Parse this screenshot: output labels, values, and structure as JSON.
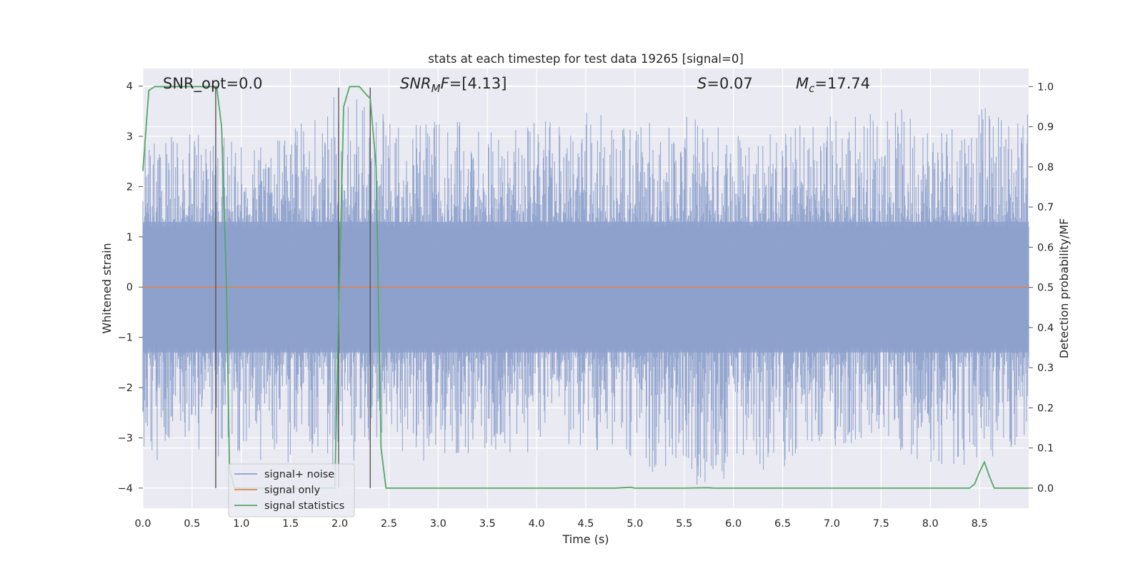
{
  "chart_data": {
    "type": "line",
    "title": "stats at each timestep for test data 19265 [signal=0]",
    "xlabel": "Time (s)",
    "ylabel": "Whitened strain",
    "y2label": "Detection probability/MF",
    "xlim": [
      0,
      9
    ],
    "ylim": [
      -4.4,
      4.35
    ],
    "y2lim": [
      -0.05,
      1.045
    ],
    "xticks": [
      "0.0",
      "0.5",
      "1.0",
      "1.5",
      "2.0",
      "2.5",
      "3.0",
      "3.5",
      "4.0",
      "4.5",
      "5.0",
      "5.5",
      "6.0",
      "6.5",
      "7.0",
      "7.5",
      "8.0",
      "8.5"
    ],
    "yticks": [
      "4",
      "3",
      "2",
      "1",
      "0",
      "−1",
      "−2",
      "−3",
      "−4"
    ],
    "y2ticks": [
      "1.0",
      "0.9",
      "0.8",
      "0.7",
      "0.6",
      "0.5",
      "0.4",
      "0.3",
      "0.2",
      "0.1",
      "0.0"
    ],
    "grid": true,
    "legend_position": "lower-left",
    "annotations": {
      "snr_opt": "SNR_opt=0.0",
      "snr_mf_var": "SNR",
      "snr_mf_sub": "M",
      "snr_mf_rest": "F=[4.13]",
      "s_var": "S",
      "s_rest": "=0.07",
      "mc_var": "M",
      "mc_sub": "c",
      "mc_rest": "=17.74"
    },
    "vertical_markers": [
      0.74,
      1.99,
      2.31
    ],
    "series": [
      {
        "name": "signal+ noise",
        "color": "#8da0cb",
        "description_value_range": [
          -4.0,
          4.0
        ],
        "envelope": {
          "x": [
            0.0,
            0.5,
            1.0,
            1.5,
            2.0,
            2.5,
            3.0,
            3.5,
            4.0,
            4.5,
            5.0,
            5.5,
            6.0,
            6.5,
            7.0,
            7.5,
            8.0,
            8.5,
            9.0
          ],
          "upper": [
            2.8,
            3.2,
            2.9,
            3.1,
            4.0,
            3.4,
            3.5,
            3.3,
            3.3,
            3.5,
            3.4,
            3.4,
            3.3,
            3.2,
            3.6,
            3.6,
            3.5,
            3.6,
            3.5
          ],
          "lower": [
            -3.5,
            -3.3,
            -3.5,
            -3.6,
            -3.6,
            -3.2,
            -3.6,
            -3.3,
            -3.3,
            -3.2,
            -3.5,
            -4.0,
            -4.0,
            -3.6,
            -3.3,
            -3.2,
            -3.5,
            -3.7,
            -3.1
          ]
        }
      },
      {
        "name": "signal only",
        "color": "#dd8452",
        "x": [
          0,
          9
        ],
        "y": [
          0,
          0
        ]
      },
      {
        "name": "signal statistics",
        "color": "#55a868",
        "axis": "right",
        "x": [
          0.0,
          0.06,
          0.12,
          0.2,
          0.3,
          0.4,
          0.5,
          0.6,
          0.7,
          0.75,
          0.8,
          0.85,
          0.88,
          0.93,
          1.0,
          1.5,
          1.95,
          1.99,
          2.04,
          2.1,
          2.2,
          2.27,
          2.31,
          2.37,
          2.42,
          2.47,
          2.5,
          3.0,
          3.5,
          4.0,
          4.5,
          4.8,
          4.95,
          5.0,
          5.5,
          5.75,
          5.8,
          6.5,
          7.0,
          7.5,
          8.0,
          8.4,
          8.45,
          8.5,
          8.55,
          8.6,
          8.65,
          8.7,
          9.0
        ],
        "y": [
          0.79,
          0.99,
          1.0,
          1.0,
          1.0,
          1.0,
          1.0,
          1.0,
          1.0,
          1.0,
          0.9,
          0.5,
          0.05,
          0.0,
          0.0,
          0.0,
          0.0,
          0.45,
          0.95,
          1.0,
          1.0,
          0.98,
          0.97,
          0.8,
          0.1,
          0.0,
          0.0,
          0.0,
          0.0,
          0.0,
          0.0,
          0.0,
          0.002,
          0.0,
          0.0,
          0.001,
          0.0,
          0.0,
          0.0,
          0.0,
          0.0,
          0.0,
          0.01,
          0.04,
          0.065,
          0.03,
          0.0,
          0.0,
          0.0
        ]
      }
    ]
  }
}
